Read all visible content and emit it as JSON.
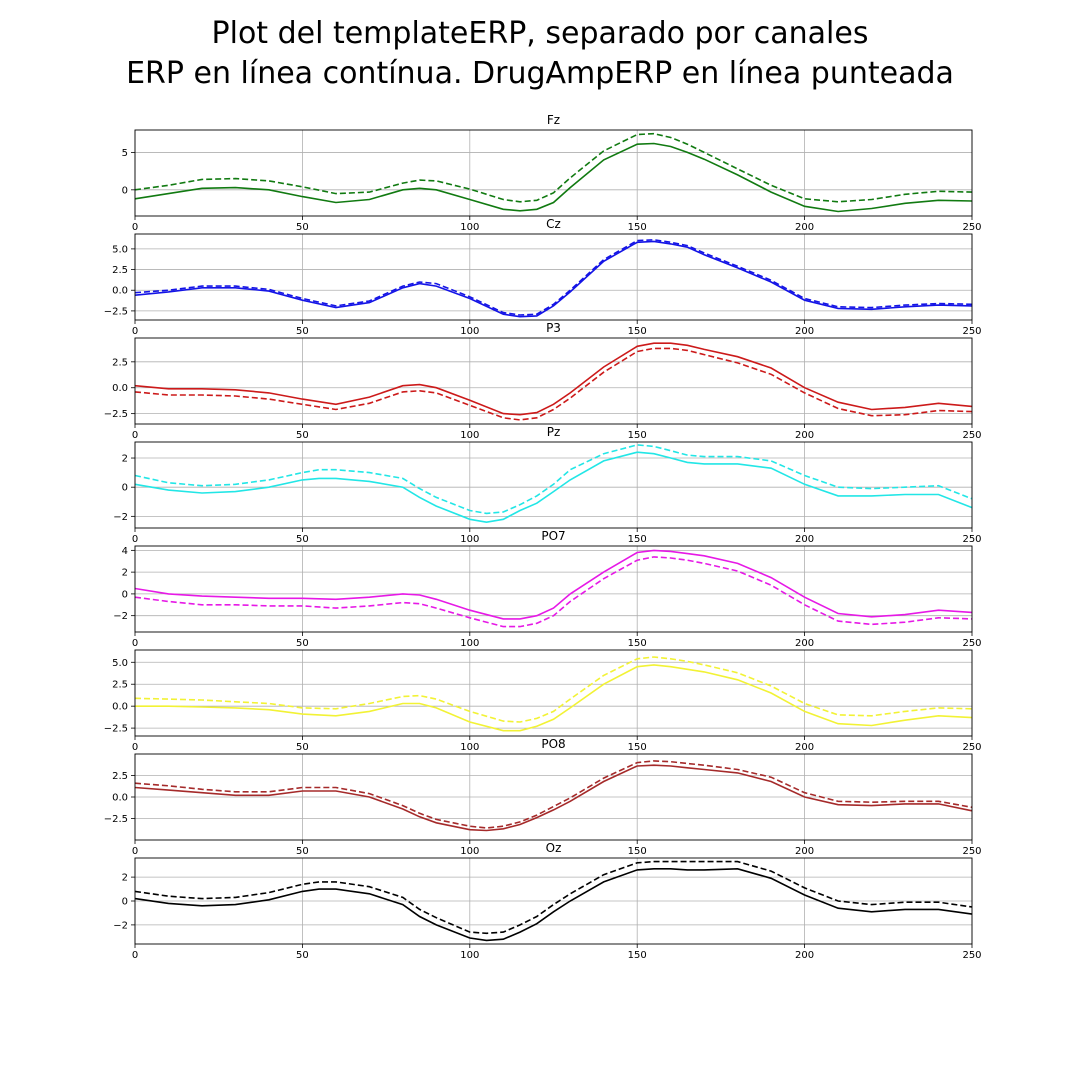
{
  "figure": {
    "title_line1": "Plot del templateERP, separado por canales",
    "title_line2": "ERP en línea contínua. DrugAmpERP en línea punteada"
  },
  "chart_data": [
    {
      "type": "line",
      "title": "Fz",
      "color": "#117a11",
      "xlim": [
        0,
        250
      ],
      "ylim": [
        -3.5,
        8.0
      ],
      "xticks": [
        0,
        50,
        100,
        150,
        200,
        250
      ],
      "yticks": [
        0,
        5
      ],
      "ytick_labels": [
        "0",
        "5"
      ],
      "grid": true,
      "x": [
        0,
        10,
        20,
        30,
        40,
        50,
        60,
        70,
        80,
        85,
        90,
        100,
        110,
        115,
        120,
        125,
        130,
        140,
        150,
        155,
        160,
        165,
        170,
        180,
        190,
        200,
        210,
        220,
        230,
        240,
        250
      ],
      "series": [
        {
          "style": "solid",
          "values": [
            -1.2,
            -0.5,
            0.2,
            0.3,
            0.0,
            -0.9,
            -1.7,
            -1.3,
            0.0,
            0.2,
            0.0,
            -1.3,
            -2.6,
            -2.8,
            -2.6,
            -1.7,
            0.3,
            4.0,
            6.1,
            6.2,
            5.8,
            5.0,
            4.1,
            2.0,
            -0.3,
            -2.2,
            -2.9,
            -2.5,
            -1.8,
            -1.4,
            -1.5
          ]
        },
        {
          "style": "dashed",
          "values": [
            0.0,
            0.6,
            1.4,
            1.5,
            1.2,
            0.4,
            -0.5,
            -0.3,
            0.9,
            1.3,
            1.2,
            0.1,
            -1.3,
            -1.6,
            -1.4,
            -0.4,
            1.6,
            5.2,
            7.4,
            7.5,
            7.0,
            6.1,
            5.0,
            2.8,
            0.6,
            -1.2,
            -1.6,
            -1.3,
            -0.6,
            -0.2,
            -0.3
          ]
        }
      ]
    },
    {
      "type": "line",
      "title": "Cz",
      "color": "#1414e6",
      "xlim": [
        0,
        250
      ],
      "ylim": [
        -3.6,
        6.8
      ],
      "xticks": [
        0,
        50,
        100,
        150,
        200,
        250
      ],
      "yticks": [
        -2.5,
        0,
        2.5,
        5
      ],
      "ytick_labels": [
        "−2.5",
        "0.0",
        "2.5",
        "5.0"
      ],
      "grid": true,
      "x": [
        0,
        10,
        20,
        30,
        40,
        50,
        60,
        70,
        80,
        85,
        90,
        100,
        110,
        115,
        120,
        125,
        130,
        140,
        150,
        155,
        160,
        165,
        170,
        180,
        190,
        200,
        210,
        220,
        230,
        240,
        250
      ],
      "series": [
        {
          "style": "solid",
          "values": [
            -0.6,
            -0.2,
            0.3,
            0.3,
            -0.1,
            -1.2,
            -2.1,
            -1.5,
            0.3,
            0.8,
            0.5,
            -1.0,
            -2.9,
            -3.2,
            -3.1,
            -1.9,
            -0.2,
            3.5,
            5.8,
            5.9,
            5.6,
            5.2,
            4.3,
            2.7,
            1.0,
            -1.2,
            -2.2,
            -2.3,
            -2.0,
            -1.8,
            -1.9
          ]
        },
        {
          "style": "dashed",
          "values": [
            -0.3,
            0.0,
            0.5,
            0.5,
            0.1,
            -1.0,
            -1.9,
            -1.3,
            0.5,
            1.0,
            0.8,
            -0.8,
            -2.7,
            -3.0,
            -2.9,
            -1.7,
            0.0,
            3.7,
            6.0,
            6.1,
            5.8,
            5.4,
            4.5,
            2.9,
            1.2,
            -1.0,
            -2.0,
            -2.1,
            -1.8,
            -1.6,
            -1.7
          ]
        }
      ]
    },
    {
      "type": "line",
      "title": "P3",
      "color": "#cc1a1a",
      "xlim": [
        0,
        250
      ],
      "ylim": [
        -3.5,
        4.8
      ],
      "xticks": [
        0,
        50,
        100,
        150,
        200,
        250
      ],
      "yticks": [
        -2.5,
        0,
        2.5
      ],
      "ytick_labels": [
        "−2.5",
        "0.0",
        "2.5"
      ],
      "grid": true,
      "x": [
        0,
        10,
        20,
        30,
        40,
        50,
        60,
        70,
        80,
        85,
        90,
        100,
        110,
        115,
        120,
        125,
        130,
        140,
        150,
        155,
        160,
        165,
        170,
        180,
        190,
        200,
        210,
        220,
        230,
        240,
        250
      ],
      "series": [
        {
          "style": "solid",
          "values": [
            0.2,
            -0.1,
            -0.1,
            -0.2,
            -0.5,
            -1.1,
            -1.6,
            -0.9,
            0.2,
            0.3,
            0.0,
            -1.2,
            -2.5,
            -2.6,
            -2.4,
            -1.6,
            -0.5,
            2.0,
            4.0,
            4.3,
            4.3,
            4.1,
            3.7,
            3.0,
            1.9,
            0.0,
            -1.4,
            -2.1,
            -1.9,
            -1.5,
            -1.8
          ]
        },
        {
          "style": "dashed",
          "values": [
            -0.4,
            -0.7,
            -0.7,
            -0.8,
            -1.1,
            -1.6,
            -2.1,
            -1.5,
            -0.4,
            -0.3,
            -0.5,
            -1.7,
            -2.9,
            -3.1,
            -2.9,
            -2.1,
            -1.0,
            1.5,
            3.5,
            3.8,
            3.8,
            3.6,
            3.2,
            2.4,
            1.3,
            -0.5,
            -2.0,
            -2.7,
            -2.6,
            -2.2,
            -2.3
          ]
        }
      ]
    },
    {
      "type": "line",
      "title": "Pz",
      "color": "#22e6e6",
      "xlim": [
        0,
        250
      ],
      "ylim": [
        -2.8,
        3.1
      ],
      "xticks": [
        0,
        50,
        100,
        150,
        200,
        250
      ],
      "yticks": [
        -2,
        0,
        2
      ],
      "ytick_labels": [
        "−2",
        "0",
        "2"
      ],
      "grid": true,
      "x": [
        0,
        10,
        20,
        30,
        40,
        50,
        55,
        60,
        70,
        80,
        85,
        90,
        100,
        105,
        110,
        115,
        120,
        125,
        130,
        140,
        150,
        155,
        160,
        165,
        170,
        180,
        190,
        200,
        210,
        220,
        230,
        240,
        250
      ],
      "series": [
        {
          "style": "solid",
          "values": [
            0.2,
            -0.2,
            -0.4,
            -0.3,
            0.0,
            0.5,
            0.6,
            0.6,
            0.4,
            0.0,
            -0.7,
            -1.3,
            -2.2,
            -2.4,
            -2.2,
            -1.6,
            -1.1,
            -0.3,
            0.5,
            1.8,
            2.4,
            2.3,
            2.0,
            1.7,
            1.6,
            1.6,
            1.3,
            0.2,
            -0.6,
            -0.6,
            -0.5,
            -0.5,
            -1.4
          ]
        },
        {
          "style": "dashed",
          "values": [
            0.8,
            0.3,
            0.1,
            0.2,
            0.5,
            1.0,
            1.2,
            1.2,
            1.0,
            0.6,
            -0.1,
            -0.7,
            -1.6,
            -1.8,
            -1.7,
            -1.2,
            -0.6,
            0.2,
            1.2,
            2.3,
            2.9,
            2.8,
            2.5,
            2.2,
            2.1,
            2.1,
            1.8,
            0.8,
            0.0,
            -0.1,
            0.0,
            0.1,
            -0.8
          ]
        }
      ]
    },
    {
      "type": "line",
      "title": "PO7",
      "color": "#e619e6",
      "xlim": [
        0,
        250
      ],
      "ylim": [
        -3.5,
        4.4
      ],
      "xticks": [
        0,
        50,
        100,
        150,
        200,
        250
      ],
      "yticks": [
        -2,
        0,
        2,
        4
      ],
      "ytick_labels": [
        "−2",
        "0",
        "2",
        "4"
      ],
      "grid": true,
      "x": [
        0,
        10,
        20,
        30,
        40,
        50,
        60,
        70,
        80,
        85,
        90,
        100,
        110,
        115,
        120,
        125,
        130,
        140,
        150,
        155,
        160,
        165,
        170,
        180,
        190,
        200,
        210,
        220,
        230,
        240,
        250
      ],
      "series": [
        {
          "style": "solid",
          "values": [
            0.5,
            0.0,
            -0.2,
            -0.3,
            -0.4,
            -0.4,
            -0.5,
            -0.3,
            0.0,
            -0.1,
            -0.5,
            -1.5,
            -2.3,
            -2.3,
            -2.0,
            -1.3,
            0.0,
            2.0,
            3.8,
            4.0,
            3.9,
            3.7,
            3.5,
            2.8,
            1.5,
            -0.3,
            -1.8,
            -2.1,
            -1.9,
            -1.5,
            -1.7
          ]
        },
        {
          "style": "dashed",
          "values": [
            -0.3,
            -0.7,
            -1.0,
            -1.0,
            -1.1,
            -1.1,
            -1.3,
            -1.1,
            -0.8,
            -0.9,
            -1.3,
            -2.2,
            -3.0,
            -3.0,
            -2.7,
            -2.0,
            -0.7,
            1.4,
            3.1,
            3.4,
            3.3,
            3.1,
            2.8,
            2.1,
            0.8,
            -1.0,
            -2.5,
            -2.8,
            -2.6,
            -2.2,
            -2.3
          ]
        }
      ]
    },
    {
      "type": "line",
      "title": "",
      "color": "#f2f235",
      "xlim": [
        0,
        250
      ],
      "ylim": [
        -3.4,
        6.4
      ],
      "xticks": [
        0,
        50,
        100,
        150,
        200,
        250
      ],
      "yticks": [
        -2.5,
        0,
        2.5,
        5
      ],
      "ytick_labels": [
        "−2.5",
        "0.0",
        "2.5",
        "5.0"
      ],
      "grid": true,
      "x": [
        0,
        10,
        20,
        30,
        40,
        50,
        60,
        70,
        80,
        85,
        90,
        100,
        110,
        115,
        120,
        125,
        130,
        140,
        150,
        155,
        160,
        165,
        170,
        180,
        190,
        200,
        210,
        220,
        230,
        240,
        250
      ],
      "series": [
        {
          "style": "solid",
          "values": [
            0.0,
            0.0,
            -0.1,
            -0.2,
            -0.4,
            -0.9,
            -1.1,
            -0.6,
            0.3,
            0.3,
            -0.2,
            -1.8,
            -2.8,
            -2.8,
            -2.3,
            -1.5,
            -0.2,
            2.5,
            4.5,
            4.7,
            4.5,
            4.2,
            3.9,
            3.0,
            1.5,
            -0.6,
            -2.0,
            -2.2,
            -1.6,
            -1.1,
            -1.3
          ]
        },
        {
          "style": "dashed",
          "values": [
            0.9,
            0.8,
            0.7,
            0.5,
            0.3,
            -0.2,
            -0.3,
            0.3,
            1.1,
            1.2,
            0.8,
            -0.6,
            -1.7,
            -1.8,
            -1.4,
            -0.6,
            0.8,
            3.5,
            5.4,
            5.6,
            5.4,
            5.1,
            4.7,
            3.8,
            2.3,
            0.3,
            -1.0,
            -1.1,
            -0.6,
            -0.2,
            -0.3
          ]
        }
      ]
    },
    {
      "type": "line",
      "title": "PO8",
      "color": "#a52a2a",
      "xlim": [
        0,
        250
      ],
      "ylim": [
        -5.0,
        5.0
      ],
      "xticks": [
        0,
        50,
        100,
        150,
        200,
        250
      ],
      "yticks": [
        -2.5,
        0,
        2.5
      ],
      "ytick_labels": [
        "−2.5",
        "0.0",
        "2.5"
      ],
      "grid": true,
      "x": [
        0,
        10,
        20,
        30,
        40,
        50,
        60,
        70,
        80,
        85,
        90,
        100,
        105,
        110,
        115,
        120,
        125,
        130,
        140,
        150,
        155,
        160,
        165,
        170,
        180,
        190,
        200,
        210,
        220,
        230,
        240,
        250
      ],
      "series": [
        {
          "style": "solid",
          "values": [
            1.1,
            0.8,
            0.5,
            0.2,
            0.2,
            0.7,
            0.7,
            0.0,
            -1.4,
            -2.3,
            -3.0,
            -3.8,
            -3.9,
            -3.7,
            -3.2,
            -2.4,
            -1.5,
            -0.5,
            1.8,
            3.6,
            3.7,
            3.6,
            3.4,
            3.2,
            2.8,
            1.8,
            0.0,
            -0.9,
            -1.0,
            -0.8,
            -0.8,
            -1.6
          ]
        },
        {
          "style": "dashed",
          "values": [
            1.6,
            1.3,
            0.9,
            0.6,
            0.6,
            1.1,
            1.1,
            0.4,
            -1.0,
            -1.9,
            -2.6,
            -3.4,
            -3.6,
            -3.4,
            -2.9,
            -2.1,
            -1.1,
            -0.1,
            2.2,
            4.0,
            4.2,
            4.1,
            3.9,
            3.7,
            3.2,
            2.3,
            0.5,
            -0.5,
            -0.6,
            -0.5,
            -0.5,
            -1.2
          ]
        }
      ]
    },
    {
      "type": "line",
      "title": "Oz",
      "color": "#000000",
      "xlim": [
        0,
        250
      ],
      "ylim": [
        -3.6,
        3.6
      ],
      "xticks": [
        0,
        50,
        100,
        150,
        200,
        250
      ],
      "yticks": [
        -2,
        0,
        2
      ],
      "ytick_labels": [
        "−2",
        "0",
        "2"
      ],
      "grid": true,
      "x": [
        0,
        10,
        20,
        30,
        40,
        50,
        55,
        60,
        70,
        80,
        85,
        90,
        100,
        105,
        110,
        115,
        120,
        125,
        130,
        140,
        150,
        155,
        160,
        165,
        170,
        180,
        190,
        200,
        210,
        220,
        230,
        240,
        250
      ],
      "series": [
        {
          "style": "solid",
          "values": [
            0.2,
            -0.2,
            -0.4,
            -0.3,
            0.1,
            0.8,
            1.0,
            1.0,
            0.6,
            -0.3,
            -1.3,
            -2.0,
            -3.1,
            -3.3,
            -3.2,
            -2.6,
            -1.9,
            -0.9,
            0.0,
            1.6,
            2.6,
            2.7,
            2.7,
            2.6,
            2.6,
            2.7,
            1.9,
            0.5,
            -0.6,
            -0.9,
            -0.7,
            -0.7,
            -1.1
          ]
        },
        {
          "style": "dashed",
          "values": [
            0.8,
            0.4,
            0.2,
            0.3,
            0.7,
            1.4,
            1.6,
            1.6,
            1.2,
            0.3,
            -0.7,
            -1.4,
            -2.6,
            -2.7,
            -2.6,
            -2.0,
            -1.3,
            -0.3,
            0.6,
            2.2,
            3.2,
            3.3,
            3.3,
            3.3,
            3.3,
            3.3,
            2.5,
            1.1,
            0.0,
            -0.3,
            -0.1,
            -0.1,
            -0.5
          ]
        }
      ]
    }
  ]
}
